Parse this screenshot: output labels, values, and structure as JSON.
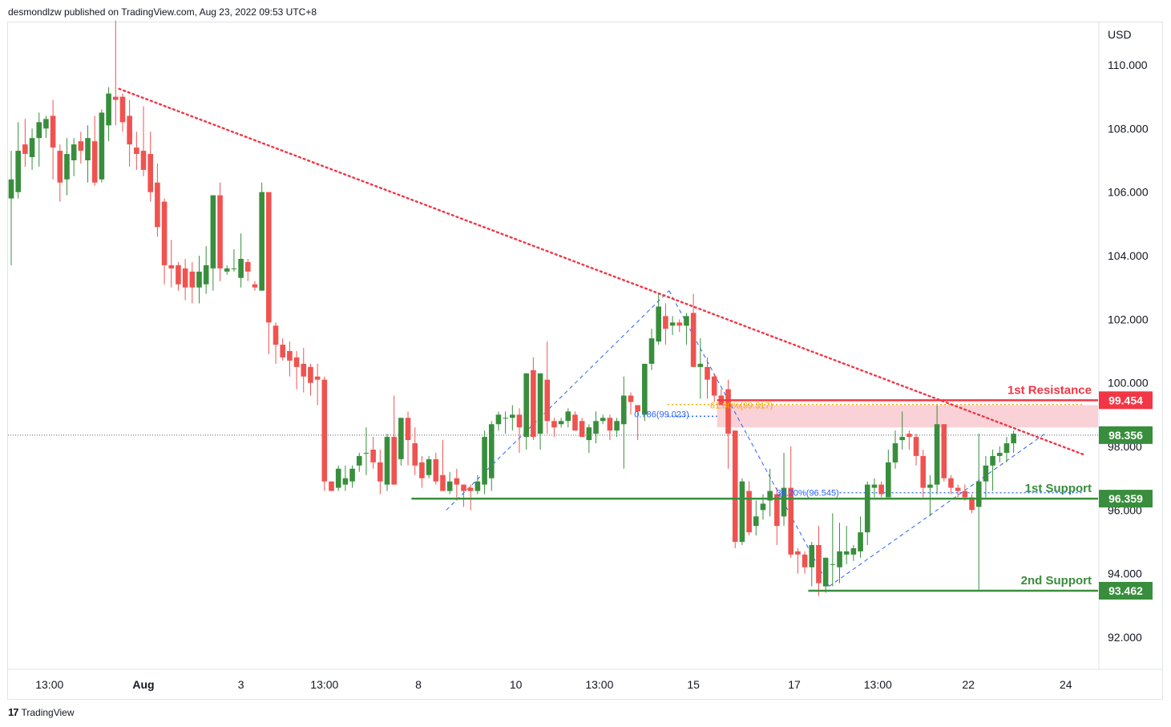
{
  "header": {
    "publisher": "desmondlzw published on TradingView.com, Aug 23, 2022 09:53 UTC+8"
  },
  "footer": {
    "brand": "TradingView",
    "logo_text": "17"
  },
  "colors": {
    "up": "#388e3c",
    "down": "#ef5350",
    "resistance": "#f23645",
    "support": "#388e3c",
    "trend": "#f23645",
    "fib": "#2962ff",
    "fib_gold": "#f7a600",
    "zone": "#f8c9d0"
  },
  "chart_data": {
    "type": "candlestick",
    "currency": "USD",
    "yticks": [
      110,
      108,
      106,
      104,
      102,
      100,
      98,
      96,
      94,
      92
    ],
    "ytick_labels": [
      "110.000",
      "108.000",
      "106.000",
      "104.000",
      "102.000",
      "100.000",
      "98.000",
      "96.000",
      "94.000",
      "92.000"
    ],
    "ylim": [
      90.9,
      112.2
    ],
    "xticks": [
      {
        "label": "13:00",
        "bar": 5.5,
        "bold": false
      },
      {
        "label": "Aug",
        "bar": 19,
        "bold": true
      },
      {
        "label": "3",
        "bar": 33,
        "bold": false
      },
      {
        "label": "13:00",
        "bar": 45,
        "bold": false
      },
      {
        "label": "8",
        "bar": 58.5,
        "bold": false
      },
      {
        "label": "10",
        "bar": 72.5,
        "bold": false
      },
      {
        "label": "13:00",
        "bar": 84.5,
        "bold": false
      },
      {
        "label": "15",
        "bar": 98,
        "bold": false
      },
      {
        "label": "17",
        "bar": 112.5,
        "bold": false
      },
      {
        "label": "13:00",
        "bar": 124.5,
        "bold": false
      },
      {
        "label": "22",
        "bar": 137.5,
        "bold": false
      },
      {
        "label": "24",
        "bar": 151.5,
        "bold": false
      }
    ],
    "candles": [
      [
        105.8,
        106.4,
        103.7,
        107.3
      ],
      [
        106.0,
        107.3,
        105.8,
        108.2
      ],
      [
        107.5,
        107.2,
        106.8,
        108.3
      ],
      [
        107.1,
        107.7,
        106.7,
        108.0
      ],
      [
        107.7,
        108.2,
        106.8,
        108.5
      ],
      [
        108.0,
        108.3,
        107.7,
        108.4
      ],
      [
        108.4,
        107.4,
        106.4,
        108.9
      ],
      [
        107.3,
        106.3,
        105.7,
        107.5
      ],
      [
        106.4,
        107.2,
        105.9,
        107.7
      ],
      [
        107.0,
        107.5,
        106.5,
        107.7
      ],
      [
        107.6,
        107.3,
        106.9,
        107.9
      ],
      [
        107.0,
        107.7,
        106.3,
        108.1
      ],
      [
        107.6,
        106.3,
        106.2,
        108.4
      ],
      [
        106.4,
        108.5,
        106.3,
        108.6
      ],
      [
        108.1,
        109.1,
        107.6,
        109.3
      ],
      [
        109.0,
        108.9,
        108.1,
        111.4
      ],
      [
        109.0,
        108.2,
        107.9,
        109.1
      ],
      [
        108.4,
        107.5,
        106.8,
        108.9
      ],
      [
        107.4,
        107.2,
        106.7,
        107.9
      ],
      [
        107.3,
        106.7,
        106.5,
        108.7
      ],
      [
        107.2,
        106.0,
        105.7,
        107.9
      ],
      [
        106.3,
        104.9,
        104.6,
        106.9
      ],
      [
        105.7,
        103.7,
        103.1,
        105.8
      ],
      [
        103.7,
        103.6,
        103.0,
        104.5
      ],
      [
        103.7,
        103.1,
        102.9,
        103.8
      ],
      [
        103.6,
        103.0,
        102.6,
        103.9
      ],
      [
        103.5,
        103.0,
        102.5,
        103.8
      ],
      [
        103.0,
        103.5,
        102.5,
        104.0
      ],
      [
        103.1,
        103.7,
        102.8,
        104.3
      ],
      [
        103.6,
        105.9,
        102.9,
        105.9
      ],
      [
        105.9,
        103.6,
        103.2,
        106.3
      ],
      [
        103.5,
        103.6,
        103.4,
        103.7
      ],
      [
        103.6,
        103.6,
        103.5,
        104.2
      ],
      [
        103.3,
        103.9,
        103.0,
        104.7
      ],
      [
        103.8,
        103.5,
        103.2,
        103.9
      ],
      [
        103.1,
        103.0,
        102.9,
        103.2
      ],
      [
        102.9,
        106.0,
        102.9,
        106.3
      ],
      [
        106.0,
        101.9,
        100.9,
        106.0
      ],
      [
        101.8,
        101.2,
        100.6,
        101.9
      ],
      [
        101.2,
        100.8,
        100.7,
        101.4
      ],
      [
        101.0,
        100.7,
        100.2,
        101.3
      ],
      [
        100.8,
        100.5,
        99.8,
        101.0
      ],
      [
        100.6,
        100.2,
        99.7,
        101.1
      ],
      [
        100.5,
        100.0,
        99.6,
        100.6
      ],
      [
        100.2,
        100.1,
        99.3,
        100.6
      ],
      [
        100.1,
        96.9,
        96.6,
        100.2
      ],
      [
        96.9,
        96.6,
        96.6,
        96.9
      ],
      [
        96.7,
        97.3,
        96.6,
        97.4
      ],
      [
        96.8,
        97.0,
        96.6,
        97.4
      ],
      [
        96.9,
        97.3,
        96.7,
        97.4
      ],
      [
        97.4,
        97.7,
        97.2,
        97.8
      ],
      [
        97.8,
        97.8,
        97.1,
        98.6
      ],
      [
        97.9,
        97.5,
        97.3,
        98.3
      ],
      [
        97.5,
        96.9,
        96.5,
        97.9
      ],
      [
        96.8,
        98.3,
        96.6,
        98.4
      ],
      [
        98.3,
        96.8,
        96.8,
        99.6
      ],
      [
        97.6,
        98.9,
        97.4,
        98.9
      ],
      [
        98.9,
        98.2,
        97.4,
        99.1
      ],
      [
        98.1,
        97.4,
        97.1,
        98.6
      ],
      [
        97.5,
        97.0,
        96.7,
        97.7
      ],
      [
        97.1,
        97.6,
        97.0,
        97.7
      ],
      [
        97.6,
        96.9,
        96.8,
        97.8
      ],
      [
        97.1,
        96.6,
        96.7,
        98.2
      ],
      [
        96.6,
        96.9,
        96.5,
        97.2
      ],
      [
        97.0,
        96.8,
        96.3,
        97.3
      ],
      [
        96.8,
        96.6,
        96.1,
        96.8
      ],
      [
        96.7,
        96.6,
        96.0,
        96.8
      ],
      [
        96.6,
        96.9,
        96.5,
        97.1
      ],
      [
        96.8,
        98.3,
        96.5,
        98.5
      ],
      [
        97.0,
        98.7,
        96.6,
        98.8
      ],
      [
        98.7,
        99.0,
        98.5,
        99.1
      ],
      [
        98.9,
        98.9,
        98.4,
        99.1
      ],
      [
        98.9,
        99.0,
        98.5,
        99.3
      ],
      [
        99.0,
        98.6,
        97.8,
        99.2
      ],
      [
        98.3,
        100.3,
        97.9,
        100.3
      ],
      [
        100.4,
        98.3,
        98.2,
        100.8
      ],
      [
        98.4,
        100.3,
        97.9,
        100.3
      ],
      [
        100.1,
        98.8,
        98.4,
        101.3
      ],
      [
        98.8,
        98.6,
        98.3,
        98.9
      ],
      [
        98.7,
        98.8,
        98.6,
        98.9
      ],
      [
        98.8,
        99.1,
        98.6,
        99.2
      ],
      [
        99.0,
        98.5,
        98.5,
        99.1
      ],
      [
        98.8,
        98.3,
        98.3,
        98.9
      ],
      [
        98.2,
        98.6,
        97.8,
        98.7
      ],
      [
        98.4,
        98.8,
        98.1,
        99.1
      ],
      [
        98.8,
        98.9,
        98.7,
        99.0
      ],
      [
        98.9,
        98.5,
        98.2,
        99.0
      ],
      [
        98.5,
        98.8,
        98.3,
        98.9
      ],
      [
        98.7,
        99.6,
        97.3,
        100.2
      ],
      [
        99.6,
        99.4,
        99.0,
        99.7
      ],
      [
        99.3,
        99.1,
        98.2,
        99.3
      ],
      [
        99.0,
        100.6,
        98.8,
        100.6
      ],
      [
        100.6,
        101.4,
        100.4,
        101.7
      ],
      [
        101.3,
        102.4,
        101.2,
        102.8
      ],
      [
        102.1,
        101.7,
        101.2,
        102.5
      ],
      [
        101.8,
        101.9,
        101.5,
        102.1
      ],
      [
        101.9,
        101.8,
        101.6,
        102.0
      ],
      [
        101.8,
        102.1,
        101.2,
        102.2
      ],
      [
        102.2,
        100.5,
        100.5,
        102.8
      ],
      [
        100.5,
        100.6,
        99.5,
        101.4
      ],
      [
        100.5,
        100.1,
        99.5,
        100.8
      ],
      [
        100.2,
        99.6,
        99.4,
        100.3
      ],
      [
        99.6,
        99.3,
        99.3,
        99.8
      ],
      [
        99.8,
        98.4,
        97.3,
        100.1
      ],
      [
        98.5,
        95.0,
        94.8,
        98.5
      ],
      [
        95.0,
        96.9,
        94.9,
        97.0
      ],
      [
        96.6,
        95.3,
        95.2,
        96.9
      ],
      [
        95.5,
        95.8,
        95.2,
        96.3
      ],
      [
        96.0,
        96.2,
        95.7,
        96.5
      ],
      [
        96.3,
        96.6,
        95.8,
        97.3
      ],
      [
        96.5,
        95.5,
        94.9,
        96.7
      ],
      [
        95.8,
        96.7,
        95.5,
        97.8
      ],
      [
        96.7,
        94.6,
        94.5,
        98.0
      ],
      [
        94.7,
        94.6,
        94.0,
        94.8
      ],
      [
        94.6,
        94.2,
        94.0,
        94.7
      ],
      [
        94.2,
        94.9,
        93.6,
        95.0
      ],
      [
        94.9,
        93.7,
        93.3,
        95.5
      ],
      [
        93.6,
        94.5,
        93.4,
        94.5
      ],
      [
        94.3,
        94.3,
        93.6,
        95.9
      ],
      [
        94.2,
        94.7,
        93.7,
        95.6
      ],
      [
        94.6,
        94.7,
        94.3,
        95.5
      ],
      [
        94.6,
        94.8,
        94.4,
        94.9
      ],
      [
        94.7,
        95.3,
        94.5,
        95.8
      ],
      [
        95.3,
        96.8,
        94.9,
        96.9
      ],
      [
        96.7,
        96.8,
        96.4,
        97.0
      ],
      [
        96.8,
        96.5,
        96.4,
        96.9
      ],
      [
        96.4,
        97.5,
        96.4,
        97.9
      ],
      [
        97.5,
        98.1,
        97.3,
        98.5
      ],
      [
        98.2,
        98.3,
        97.9,
        99.1
      ],
      [
        98.4,
        98.3,
        97.9,
        98.5
      ],
      [
        98.3,
        97.7,
        97.4,
        98.4
      ],
      [
        97.7,
        96.7,
        96.4,
        97.9
      ],
      [
        96.7,
        96.8,
        95.8,
        97.1
      ],
      [
        96.8,
        98.7,
        96.5,
        99.3
      ],
      [
        98.7,
        97.0,
        96.9,
        98.7
      ],
      [
        97.0,
        96.7,
        96.5,
        97.1
      ],
      [
        96.7,
        96.6,
        96.4,
        96.8
      ],
      [
        96.6,
        96.4,
        96.3,
        96.8
      ],
      [
        96.4,
        96.0,
        95.9,
        96.5
      ],
      [
        96.1,
        96.9,
        93.5,
        98.4
      ],
      [
        96.9,
        97.4,
        96.4,
        97.7
      ],
      [
        97.4,
        97.7,
        96.6,
        97.9
      ],
      [
        97.7,
        97.8,
        97.5,
        98.0
      ],
      [
        97.8,
        98.1,
        97.5,
        98.3
      ],
      [
        98.1,
        98.4,
        97.8,
        98.5
      ]
    ],
    "trendline": {
      "from_bar": 15.5,
      "from_price": 109.25,
      "to_bar": 154,
      "to_price": 97.75
    },
    "levels": [
      {
        "name": "1st Resistance",
        "value": 99.454,
        "label": "99.454",
        "from_bar": 101.4
      },
      {
        "name": "1st Support",
        "value": 96.359,
        "label": "96.359",
        "from_bar": 57.5
      },
      {
        "name": "2nd Support",
        "value": 93.462,
        "label": "93.462",
        "from_bar": 114.5
      }
    ],
    "last_price": {
      "value": 98.356,
      "label": "98.356"
    },
    "resistance_zone": {
      "top": 99.3,
      "bottom": 98.6,
      "from_bar": 101.4
    },
    "fib_annotations": [
      {
        "text": "0.786(99.023)",
        "color": "blue",
        "bar": 89.5,
        "price": 99.02,
        "line_from": 94.3,
        "line_to": 101.4,
        "line_price": 98.95
      },
      {
        "text": "61.80%(99.317)",
        "color": "gold",
        "bar": 100.4,
        "price": 99.3,
        "line_from": 94.3,
        "line_to": 154,
        "line_price": 99.32
      },
      {
        "text": "38.20%(96.545)",
        "color": "blue",
        "bar": 109.9,
        "price": 96.545,
        "line_from": 119,
        "line_to": 154,
        "line_price": 96.545
      }
    ],
    "fib_legs": [
      [
        [
          62.5,
          96.0
        ],
        [
          94.5,
          102.9
        ]
      ],
      [
        [
          94.5,
          102.9
        ],
        [
          117.5,
          93.6
        ]
      ],
      [
        [
          117.5,
          93.6
        ],
        [
          148.5,
          98.4
        ]
      ]
    ]
  }
}
